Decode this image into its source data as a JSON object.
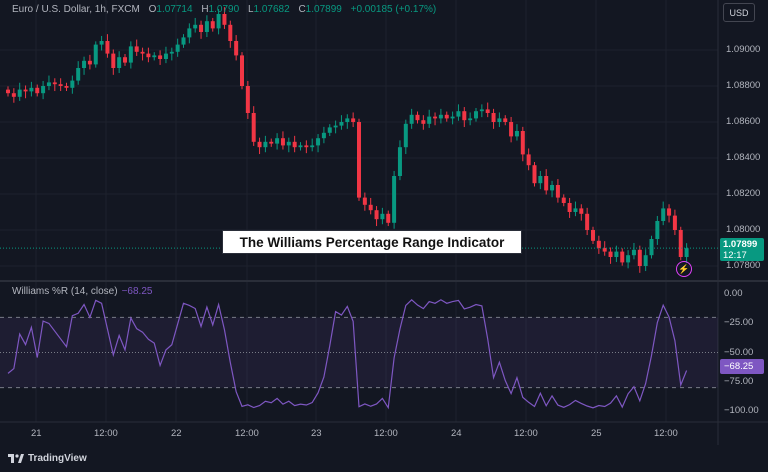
{
  "header": {
    "symbol": "Euro / U.S. Dollar, 1h, FXCM",
    "open_label": "O",
    "open": "1.07714",
    "high_label": "H",
    "high": "1.0790",
    "low_label": "L",
    "low": "1.07682",
    "close_label": "C",
    "close": "1.07899",
    "change": "+0.00185 (+0.17%)",
    "currency_button": "USD"
  },
  "overlay_title": "The Williams Percentage Range Indicator",
  "price_tag": {
    "price": "1.07899",
    "countdown": "12:17"
  },
  "indicator": {
    "label": "Williams %R (14, close)",
    "value": "−68.25",
    "tag": "−68.25"
  },
  "footer": {
    "brand": "TradingView",
    "logo_icon": "tradingview-logo-icon"
  },
  "colors": {
    "up": "#089981",
    "down": "#f23645",
    "wpr": "#7e57c2",
    "background": "#131722"
  },
  "chart_data": [
    {
      "type": "candlestick",
      "interval": "1h",
      "ylim": [
        1.0775,
        1.0928
      ],
      "y_ticks": [
        "1.09000",
        "1.08800",
        "1.08600",
        "1.08400",
        "1.08200",
        "1.08000",
        "1.07800"
      ],
      "x_ticks": [
        "21",
        "12:00",
        "22",
        "12:00",
        "23",
        "12:00",
        "24",
        "12:00",
        "25",
        "12:00"
      ],
      "closes": [
        1.0876,
        1.0874,
        1.0878,
        1.0877,
        1.0879,
        1.0876,
        1.088,
        1.0882,
        1.0881,
        1.088,
        1.0879,
        1.0883,
        1.089,
        1.0894,
        1.0892,
        1.0903,
        1.0905,
        1.0898,
        1.089,
        1.0896,
        1.0893,
        1.0902,
        1.0899,
        1.0898,
        1.0896,
        1.0897,
        1.0895,
        1.0898,
        1.0899,
        1.0903,
        1.0907,
        1.0912,
        1.0914,
        1.091,
        1.0916,
        1.0912,
        1.092,
        1.0914,
        1.0905,
        1.0897,
        1.088,
        1.0865,
        1.0849,
        1.0846,
        1.0849,
        1.0848,
        1.0851,
        1.0847,
        1.0849,
        1.0846,
        1.0847,
        1.0846,
        1.0847,
        1.0851,
        1.0854,
        1.0857,
        1.0858,
        1.086,
        1.0862,
        1.086,
        1.0818,
        1.0814,
        1.0811,
        1.0806,
        1.0809,
        1.0804,
        1.083,
        1.0846,
        1.0859,
        1.0864,
        1.0861,
        1.0859,
        1.0863,
        1.0862,
        1.0864,
        1.0862,
        1.0863,
        1.0866,
        1.0861,
        1.0862,
        1.0866,
        1.0867,
        1.0865,
        1.086,
        1.0862,
        1.086,
        1.0852,
        1.0855,
        1.0842,
        1.0836,
        1.0826,
        1.083,
        1.0822,
        1.0825,
        1.0818,
        1.0815,
        1.081,
        1.0812,
        1.0809,
        1.08,
        1.0794,
        1.079,
        1.0788,
        1.0785,
        1.0788,
        1.0782,
        1.0786,
        1.0789,
        1.078,
        1.0786,
        1.0795,
        1.0805,
        1.0812,
        1.0808,
        1.08,
        1.0785,
        1.07899
      ],
      "last_price": 1.07899
    },
    {
      "type": "line",
      "name": "Williams %R (14, close)",
      "ylim": [
        -100,
        0
      ],
      "y_ticks": [
        "0.00",
        "−25.00",
        "−50.00",
        "−75.00",
        "−100.00"
      ],
      "bands": [
        -20,
        -50,
        -80
      ],
      "period": 14,
      "last_value": -68.25
    }
  ]
}
